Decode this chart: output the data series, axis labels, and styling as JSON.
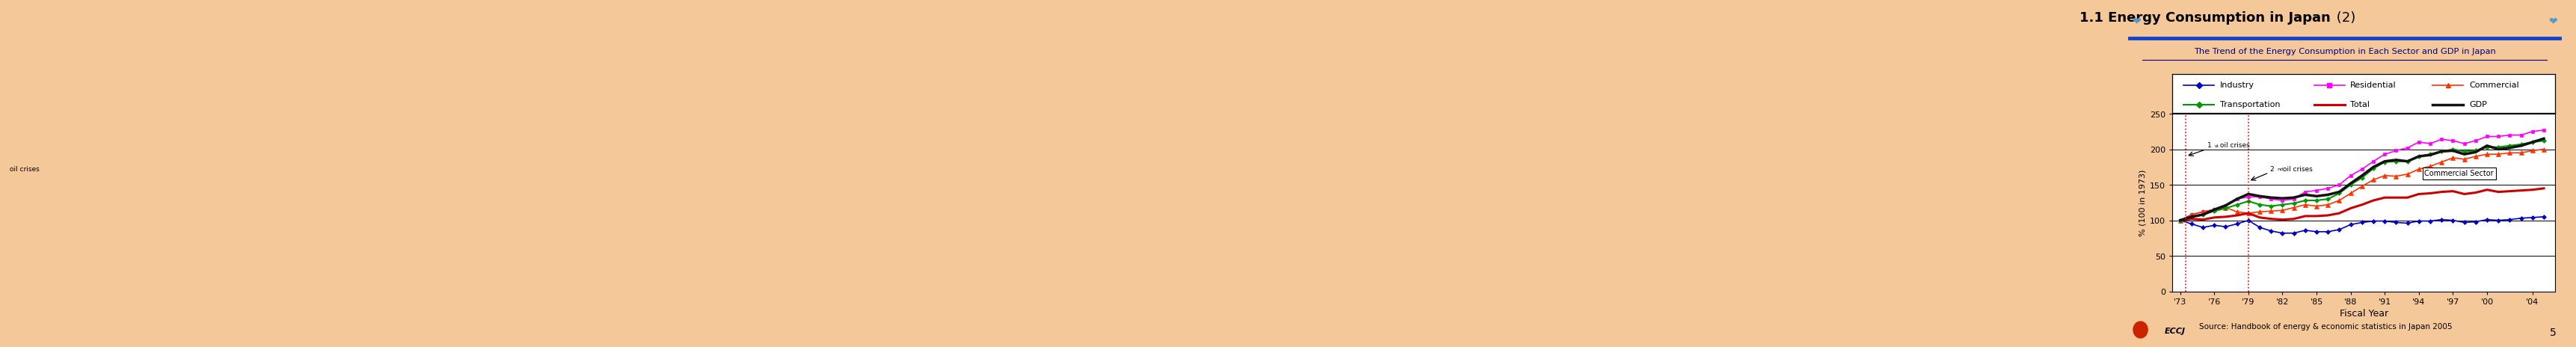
{
  "title_bold": "1.1 Energy Consumption in Japan",
  "title_light": " (2)",
  "subtitle": "The Trend of the Energy Consumption in Each Sector and GDP in Japan",
  "source": "Source: Handbook of energy & economic statistics in Japan 2005",
  "xlabel": "Fiscal Year",
  "ylabel": "% (100 in 1973)",
  "bg_color": "#F5C89A",
  "plot_bg": "#FFFFFF",
  "years": [
    1973,
    1974,
    1975,
    1976,
    1977,
    1978,
    1979,
    1980,
    1981,
    1982,
    1983,
    1984,
    1985,
    1986,
    1987,
    1988,
    1989,
    1990,
    1991,
    1992,
    1993,
    1994,
    1995,
    1996,
    1997,
    1998,
    1999,
    2000,
    2001,
    2002,
    2003,
    2004,
    2005
  ],
  "industry": [
    100,
    95,
    90,
    93,
    91,
    95,
    100,
    90,
    85,
    82,
    82,
    86,
    84,
    84,
    87,
    94,
    97,
    99,
    99,
    97,
    96,
    99,
    99,
    101,
    100,
    97,
    98,
    101,
    100,
    101,
    103,
    104,
    105
  ],
  "residential": [
    100,
    108,
    112,
    115,
    120,
    130,
    133,
    133,
    130,
    128,
    130,
    140,
    142,
    145,
    150,
    163,
    172,
    183,
    193,
    198,
    202,
    210,
    208,
    214,
    212,
    208,
    212,
    218,
    218,
    220,
    220,
    225,
    227
  ],
  "commercial": [
    100,
    108,
    112,
    115,
    118,
    112,
    110,
    112,
    113,
    114,
    118,
    122,
    120,
    122,
    128,
    138,
    148,
    157,
    163,
    162,
    165,
    172,
    176,
    182,
    188,
    186,
    190,
    193,
    193,
    195,
    195,
    198,
    200
  ],
  "transportation": [
    100,
    105,
    108,
    113,
    117,
    122,
    127,
    122,
    120,
    122,
    124,
    128,
    128,
    130,
    138,
    150,
    160,
    173,
    182,
    183,
    183,
    190,
    193,
    197,
    200,
    197,
    198,
    203,
    203,
    205,
    207,
    210,
    212
  ],
  "total": [
    100,
    102,
    101,
    104,
    105,
    107,
    110,
    104,
    102,
    101,
    102,
    106,
    106,
    107,
    110,
    117,
    122,
    128,
    132,
    132,
    132,
    137,
    138,
    140,
    141,
    137,
    139,
    143,
    140,
    141,
    142,
    143,
    145
  ],
  "gdp": [
    100,
    105,
    108,
    115,
    121,
    130,
    137,
    134,
    132,
    131,
    132,
    136,
    134,
    136,
    140,
    152,
    163,
    175,
    183,
    185,
    183,
    190,
    192,
    197,
    198,
    193,
    196,
    205,
    200,
    202,
    205,
    210,
    215
  ],
  "oil_crisis_1": 1973.5,
  "oil_crisis_2": 1979.0,
  "ylim": [
    0,
    250
  ],
  "yticks": [
    0,
    50,
    100,
    150,
    200,
    250
  ],
  "xticks": [
    1973,
    1976,
    1979,
    1982,
    1985,
    1988,
    1991,
    1994,
    1997,
    2000,
    2004
  ],
  "xtick_labels": [
    "'73",
    "'76",
    "'79",
    "'82",
    "'85",
    "'88",
    "'91",
    "'94",
    "'97",
    "'00",
    "'04"
  ],
  "line_colors": {
    "industry": "#0000CC",
    "residential": "#FF00FF",
    "commercial": "#FF3300",
    "transportation": "#009900",
    "total": "#CC0000",
    "gdp": "#111111"
  },
  "header_line_color": "#1144CC",
  "legend_items": [
    {
      "label": "Industry",
      "color": "#0000CC",
      "marker": "D",
      "lw": 1.2,
      "row": 0,
      "col": 0
    },
    {
      "label": "Residential",
      "color": "#FF00FF",
      "marker": "s",
      "lw": 1.2,
      "row": 0,
      "col": 1
    },
    {
      "label": "Commercial",
      "color": "#FF3300",
      "marker": "^",
      "lw": 1.2,
      "row": 0,
      "col": 2
    },
    {
      "label": "Transportation",
      "color": "#009900",
      "marker": "D",
      "lw": 1.5,
      "row": 1,
      "col": 0
    },
    {
      "label": "Total",
      "color": "#CC0000",
      "marker": null,
      "lw": 2.2,
      "row": 1,
      "col": 1
    },
    {
      "label": "GDP",
      "color": "#111111",
      "marker": null,
      "lw": 2.5,
      "row": 1,
      "col": 2
    }
  ]
}
